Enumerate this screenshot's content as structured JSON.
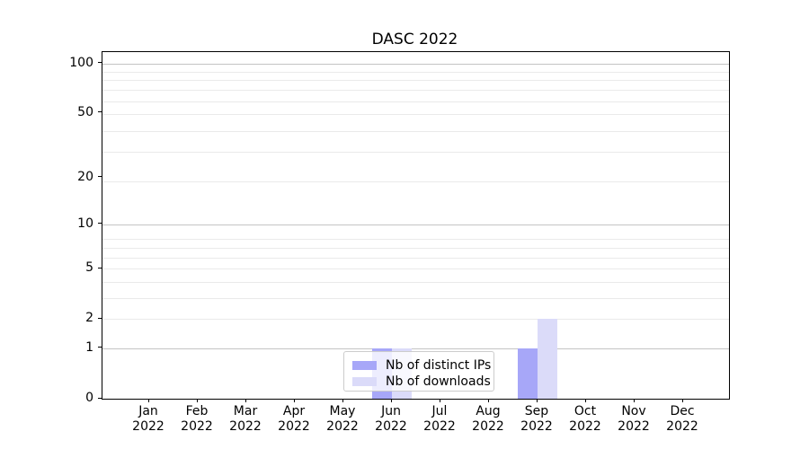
{
  "chart_data": {
    "type": "bar",
    "title": "DASC 2022",
    "categories": [
      "Jan",
      "Feb",
      "Mar",
      "Apr",
      "May",
      "Jun",
      "Jul",
      "Aug",
      "Sep",
      "Oct",
      "Nov",
      "Dec"
    ],
    "x_year_label": "2022",
    "series": [
      {
        "name": "Nb of distinct IPs",
        "color": "#a7a7f8",
        "values": [
          0,
          0,
          0,
          0,
          0,
          1,
          0,
          0,
          1,
          0,
          0,
          0
        ]
      },
      {
        "name": "Nb of downloads",
        "color": "#dbdbf9",
        "values": [
          0,
          0,
          0,
          0,
          0,
          1,
          0,
          0,
          2,
          0,
          0,
          0
        ]
      }
    ],
    "y_axis": {
      "scale": "log1p",
      "ylim": [
        0,
        117
      ],
      "major_tick_labels": [
        0,
        1,
        2,
        5,
        10,
        20,
        50,
        100
      ],
      "dark_gridlines": [
        1,
        10,
        100
      ],
      "light_gridlines": [
        2,
        3,
        4,
        5,
        6,
        7,
        8,
        19,
        29,
        39,
        49,
        59,
        69,
        79,
        89
      ],
      "grid_major_color": "#c4c4c4",
      "grid_minor_color": "#eaeaea"
    },
    "legend_position": "lower center",
    "background_color": "#ffffff",
    "spine_color": "#000000"
  }
}
